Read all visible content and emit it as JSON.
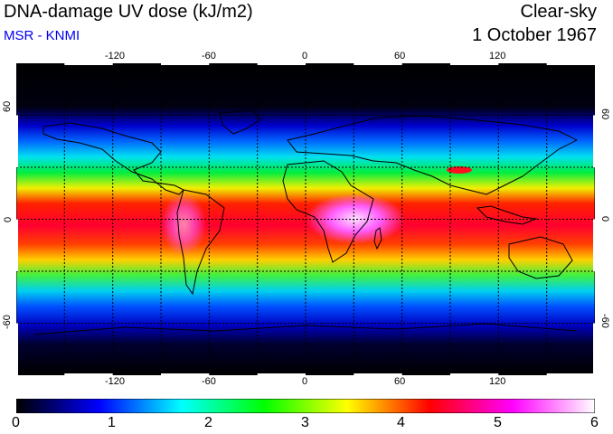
{
  "header": {
    "title": "DNA-damage UV dose (kJ/m2)",
    "source": "MSR - KNMI",
    "condition": "Clear-sky",
    "date": "1 October 1967"
  },
  "map": {
    "lon_ticks": [
      "-120",
      "-60",
      "0",
      "60",
      "120"
    ],
    "lat_ticks": [
      "60",
      "0",
      "-60"
    ],
    "lon_range": [
      -180,
      180
    ],
    "lat_range": [
      -90,
      90
    ],
    "gridlines": true,
    "gridline_style": "dotted black",
    "background_color": "#000000",
    "coastline_color": "#000000"
  },
  "colorbar": {
    "labels": [
      "0",
      "1",
      "2",
      "3",
      "4",
      "5",
      "6"
    ],
    "range": [
      0,
      6
    ],
    "colors": [
      "#000000",
      "#0000ff",
      "#00ffff",
      "#00ff00",
      "#ffff00",
      "#ff0000",
      "#ff00ff",
      "#ffffff"
    ]
  }
}
